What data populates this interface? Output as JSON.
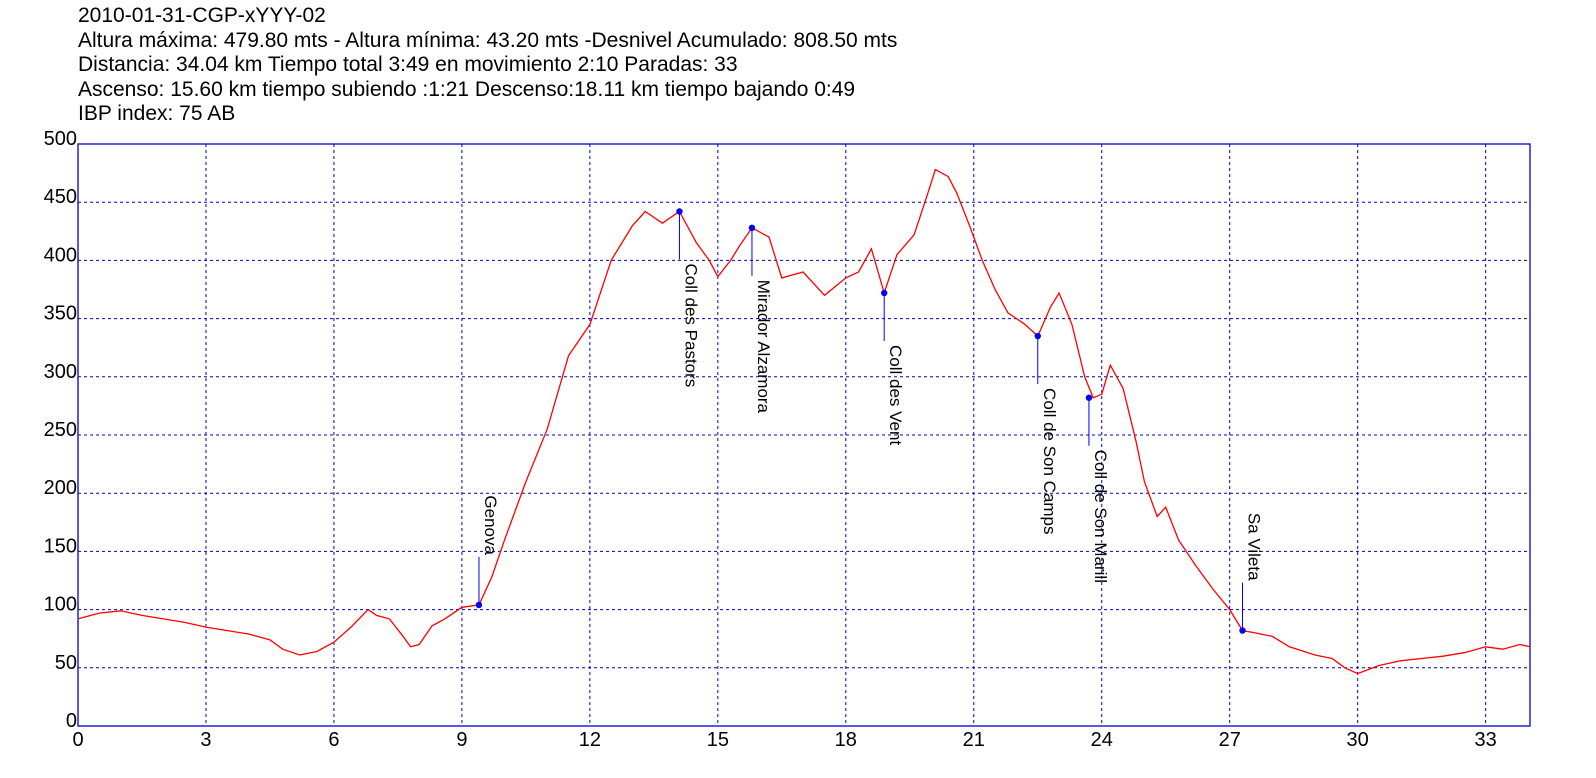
{
  "header": {
    "title": "2010-01-31-CGP-xYYY-02",
    "line1": "Altura máxima: 479.80 mts - Altura mínima: 43.20 mts -Desnivel Acumulado: 808.50 mts",
    "line2": "Distancia: 34.04 km  Tiempo total 3:49  en movimiento 2:10 Paradas: 33",
    "line3": "Ascenso: 15.60 km  tiempo subiendo :1:21  Descenso:18.11 km tiempo bajando 0:49",
    "line4": "IBP index: 75 AB"
  },
  "colors": {
    "line": "#ff0000",
    "grid": "#0000cc",
    "frame": "#0000cc",
    "marker": "#0000ff"
  },
  "chart_data": {
    "type": "line",
    "title": "2010-01-31-CGP-xYYY-02",
    "xlabel": "",
    "ylabel": "",
    "xlim": [
      0,
      34.04
    ],
    "ylim": [
      0,
      500
    ],
    "x_ticks": [
      0,
      3,
      6,
      9,
      12,
      15,
      18,
      21,
      24,
      27,
      30,
      33
    ],
    "y_ticks": [
      0,
      50,
      100,
      150,
      200,
      250,
      300,
      350,
      400,
      450,
      500
    ],
    "grid": true,
    "series": [
      {
        "x": [
          0,
          0.5,
          1.0,
          1.5,
          2.0,
          2.5,
          3.0,
          3.5,
          4.0,
          4.5,
          4.8,
          5.2,
          5.6,
          6.0,
          6.4,
          6.8,
          7.0,
          7.3,
          7.6,
          7.8,
          8.0,
          8.3,
          8.6,
          9.0,
          9.4,
          9.7,
          10.0,
          10.5,
          11.0,
          11.5,
          12.0,
          12.5,
          13.0,
          13.3,
          13.7,
          14.1,
          14.5,
          14.8,
          15.0,
          15.3,
          15.5,
          15.8,
          16.2,
          16.5,
          17.0,
          17.5,
          18.0,
          18.3,
          18.6,
          18.9,
          19.2,
          19.6,
          19.9,
          20.1,
          20.4,
          20.6,
          20.9,
          21.2,
          21.5,
          21.8,
          22.2,
          22.5,
          22.8,
          23.0,
          23.3,
          23.6,
          23.8,
          24.0,
          24.2,
          24.5,
          24.8,
          25.0,
          25.3,
          25.5,
          25.8,
          26.2,
          26.6,
          27.0,
          27.3,
          27.6,
          28.0,
          28.4,
          29.0,
          29.4,
          29.7,
          30.0,
          30.5,
          31.0,
          31.5,
          32.0,
          32.5,
          33.0,
          33.4,
          33.8,
          34.04
        ],
        "y": [
          92,
          97,
          99,
          95,
          92,
          89,
          85,
          82,
          79,
          74,
          66,
          61,
          64,
          72,
          85,
          100,
          95,
          92,
          78,
          68,
          70,
          86,
          92,
          102,
          104,
          128,
          160,
          210,
          255,
          318,
          345,
          400,
          430,
          442,
          432,
          442,
          415,
          400,
          386,
          400,
          412,
          428,
          420,
          385,
          390,
          370,
          385,
          390,
          410,
          372,
          405,
          422,
          455,
          478,
          472,
          458,
          430,
          400,
          375,
          355,
          345,
          335,
          360,
          372,
          345,
          300,
          282,
          285,
          310,
          290,
          245,
          210,
          180,
          188,
          160,
          138,
          118,
          100,
          82,
          80,
          77,
          68,
          61,
          58,
          50,
          45,
          52,
          56,
          58,
          60,
          63,
          68,
          66,
          70,
          68
        ]
      }
    ],
    "annotations": [
      {
        "x": 9.4,
        "y": 104,
        "label": "Genova",
        "side": "above"
      },
      {
        "x": 14.1,
        "y": 442,
        "label": "Coll des Pastors",
        "side": "below"
      },
      {
        "x": 15.8,
        "y": 428,
        "label": "Mirador Alzamora",
        "side": "below"
      },
      {
        "x": 18.9,
        "y": 372,
        "label": "Coll des Vent",
        "side": "below"
      },
      {
        "x": 22.5,
        "y": 335,
        "label": "Coll de Son Camps",
        "side": "below"
      },
      {
        "x": 23.7,
        "y": 282,
        "label": "Coll de Son Marill",
        "side": "below"
      },
      {
        "x": 27.3,
        "y": 82,
        "label": "Sa Vileta",
        "side": "above"
      }
    ]
  }
}
